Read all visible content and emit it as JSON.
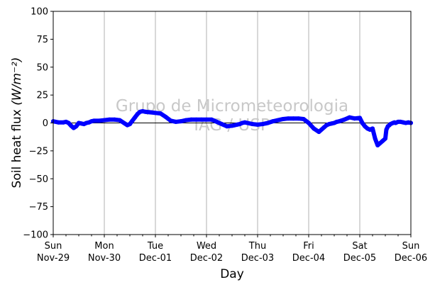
{
  "chart_data": {
    "type": "line",
    "xlabel": "Day",
    "ylabel": "Soil heat flux",
    "ylabel_unit": "(W/m⁻²)",
    "ylim": [
      -100,
      100
    ],
    "yticks": [
      -100,
      -75,
      -50,
      -25,
      0,
      25,
      50,
      75,
      100
    ],
    "xlim": [
      0,
      7
    ],
    "xticks": [
      {
        "day": "Sun",
        "date": "Nov-29"
      },
      {
        "day": "Mon",
        "date": "Nov-30"
      },
      {
        "day": "Tue",
        "date": "Dec-01"
      },
      {
        "day": "Wed",
        "date": "Dec-02"
      },
      {
        "day": "Thu",
        "date": "Dec-03"
      },
      {
        "day": "Fri",
        "date": "Dec-04"
      },
      {
        "day": "Sat",
        "date": "Dec-05"
      },
      {
        "day": "Sun",
        "date": "Dec-06"
      }
    ],
    "minor_ticks_per_day": 4,
    "grid": "vertical-major",
    "zero_line": true,
    "watermark": [
      "Grupo de Micrometeorologia",
      "IAG / USP"
    ],
    "series_color": "#0000ff",
    "zero_line_color": "#000000",
    "grid_color": "#b0b0b0",
    "x": [
      0.0,
      0.1,
      0.2,
      0.25,
      0.3,
      0.35,
      0.4,
      0.45,
      0.5,
      0.55,
      0.6,
      0.65,
      0.7,
      0.75,
      0.8,
      0.9,
      1.0,
      1.1,
      1.2,
      1.3,
      1.4,
      1.45,
      1.5,
      1.55,
      1.6,
      1.65,
      1.7,
      1.75,
      1.8,
      1.9,
      2.0,
      2.1,
      2.2,
      2.3,
      2.4,
      2.5,
      2.6,
      2.7,
      2.8,
      2.9,
      3.0,
      3.1,
      3.2,
      3.3,
      3.4,
      3.5,
      3.55,
      3.6,
      3.65,
      3.7,
      3.75,
      3.8,
      3.9,
      4.0,
      4.1,
      4.2,
      4.3,
      4.4,
      4.5,
      4.6,
      4.7,
      4.8,
      4.9,
      5.0,
      5.1,
      5.2,
      5.3,
      5.35,
      5.4,
      5.45,
      5.5,
      5.55,
      5.6,
      5.7,
      5.8,
      5.9,
      6.0,
      6.05,
      6.1,
      6.15,
      6.2,
      6.25,
      6.3,
      6.35,
      6.4,
      6.45,
      6.5,
      6.52,
      6.55,
      6.58,
      6.6,
      6.65,
      6.68,
      6.7,
      6.75,
      6.8,
      6.85,
      6.9,
      6.95,
      7.0
    ],
    "y": [
      1.5,
      0.5,
      0.5,
      1,
      0,
      -2.5,
      -4.5,
      -3,
      0,
      -0.5,
      -1,
      0,
      0.5,
      1.5,
      2,
      2,
      2.5,
      3,
      3,
      2.5,
      -0.5,
      -2,
      -1,
      2,
      5,
      8,
      10,
      10.5,
      10,
      9.5,
      9,
      8.5,
      5.5,
      2,
      1,
      1.5,
      2.5,
      3,
      3,
      3,
      3,
      3,
      1,
      -1,
      -3,
      -2.5,
      -2,
      -1.5,
      -1,
      0,
      0.5,
      0,
      -1,
      -1.5,
      -1,
      0,
      1.5,
      2.5,
      3.5,
      4,
      4,
      4,
      3.5,
      0,
      -5,
      -8,
      -4,
      -2,
      -1,
      -0.5,
      0,
      1,
      1.5,
      3,
      5,
      4,
      4.5,
      0,
      -3,
      -5,
      -6,
      -5,
      -14,
      -20,
      -18,
      -16,
      -14,
      -6,
      -3,
      -2,
      -1,
      0,
      0.5,
      0,
      1,
      1,
      0.5,
      0,
      0.5,
      0
    ]
  }
}
